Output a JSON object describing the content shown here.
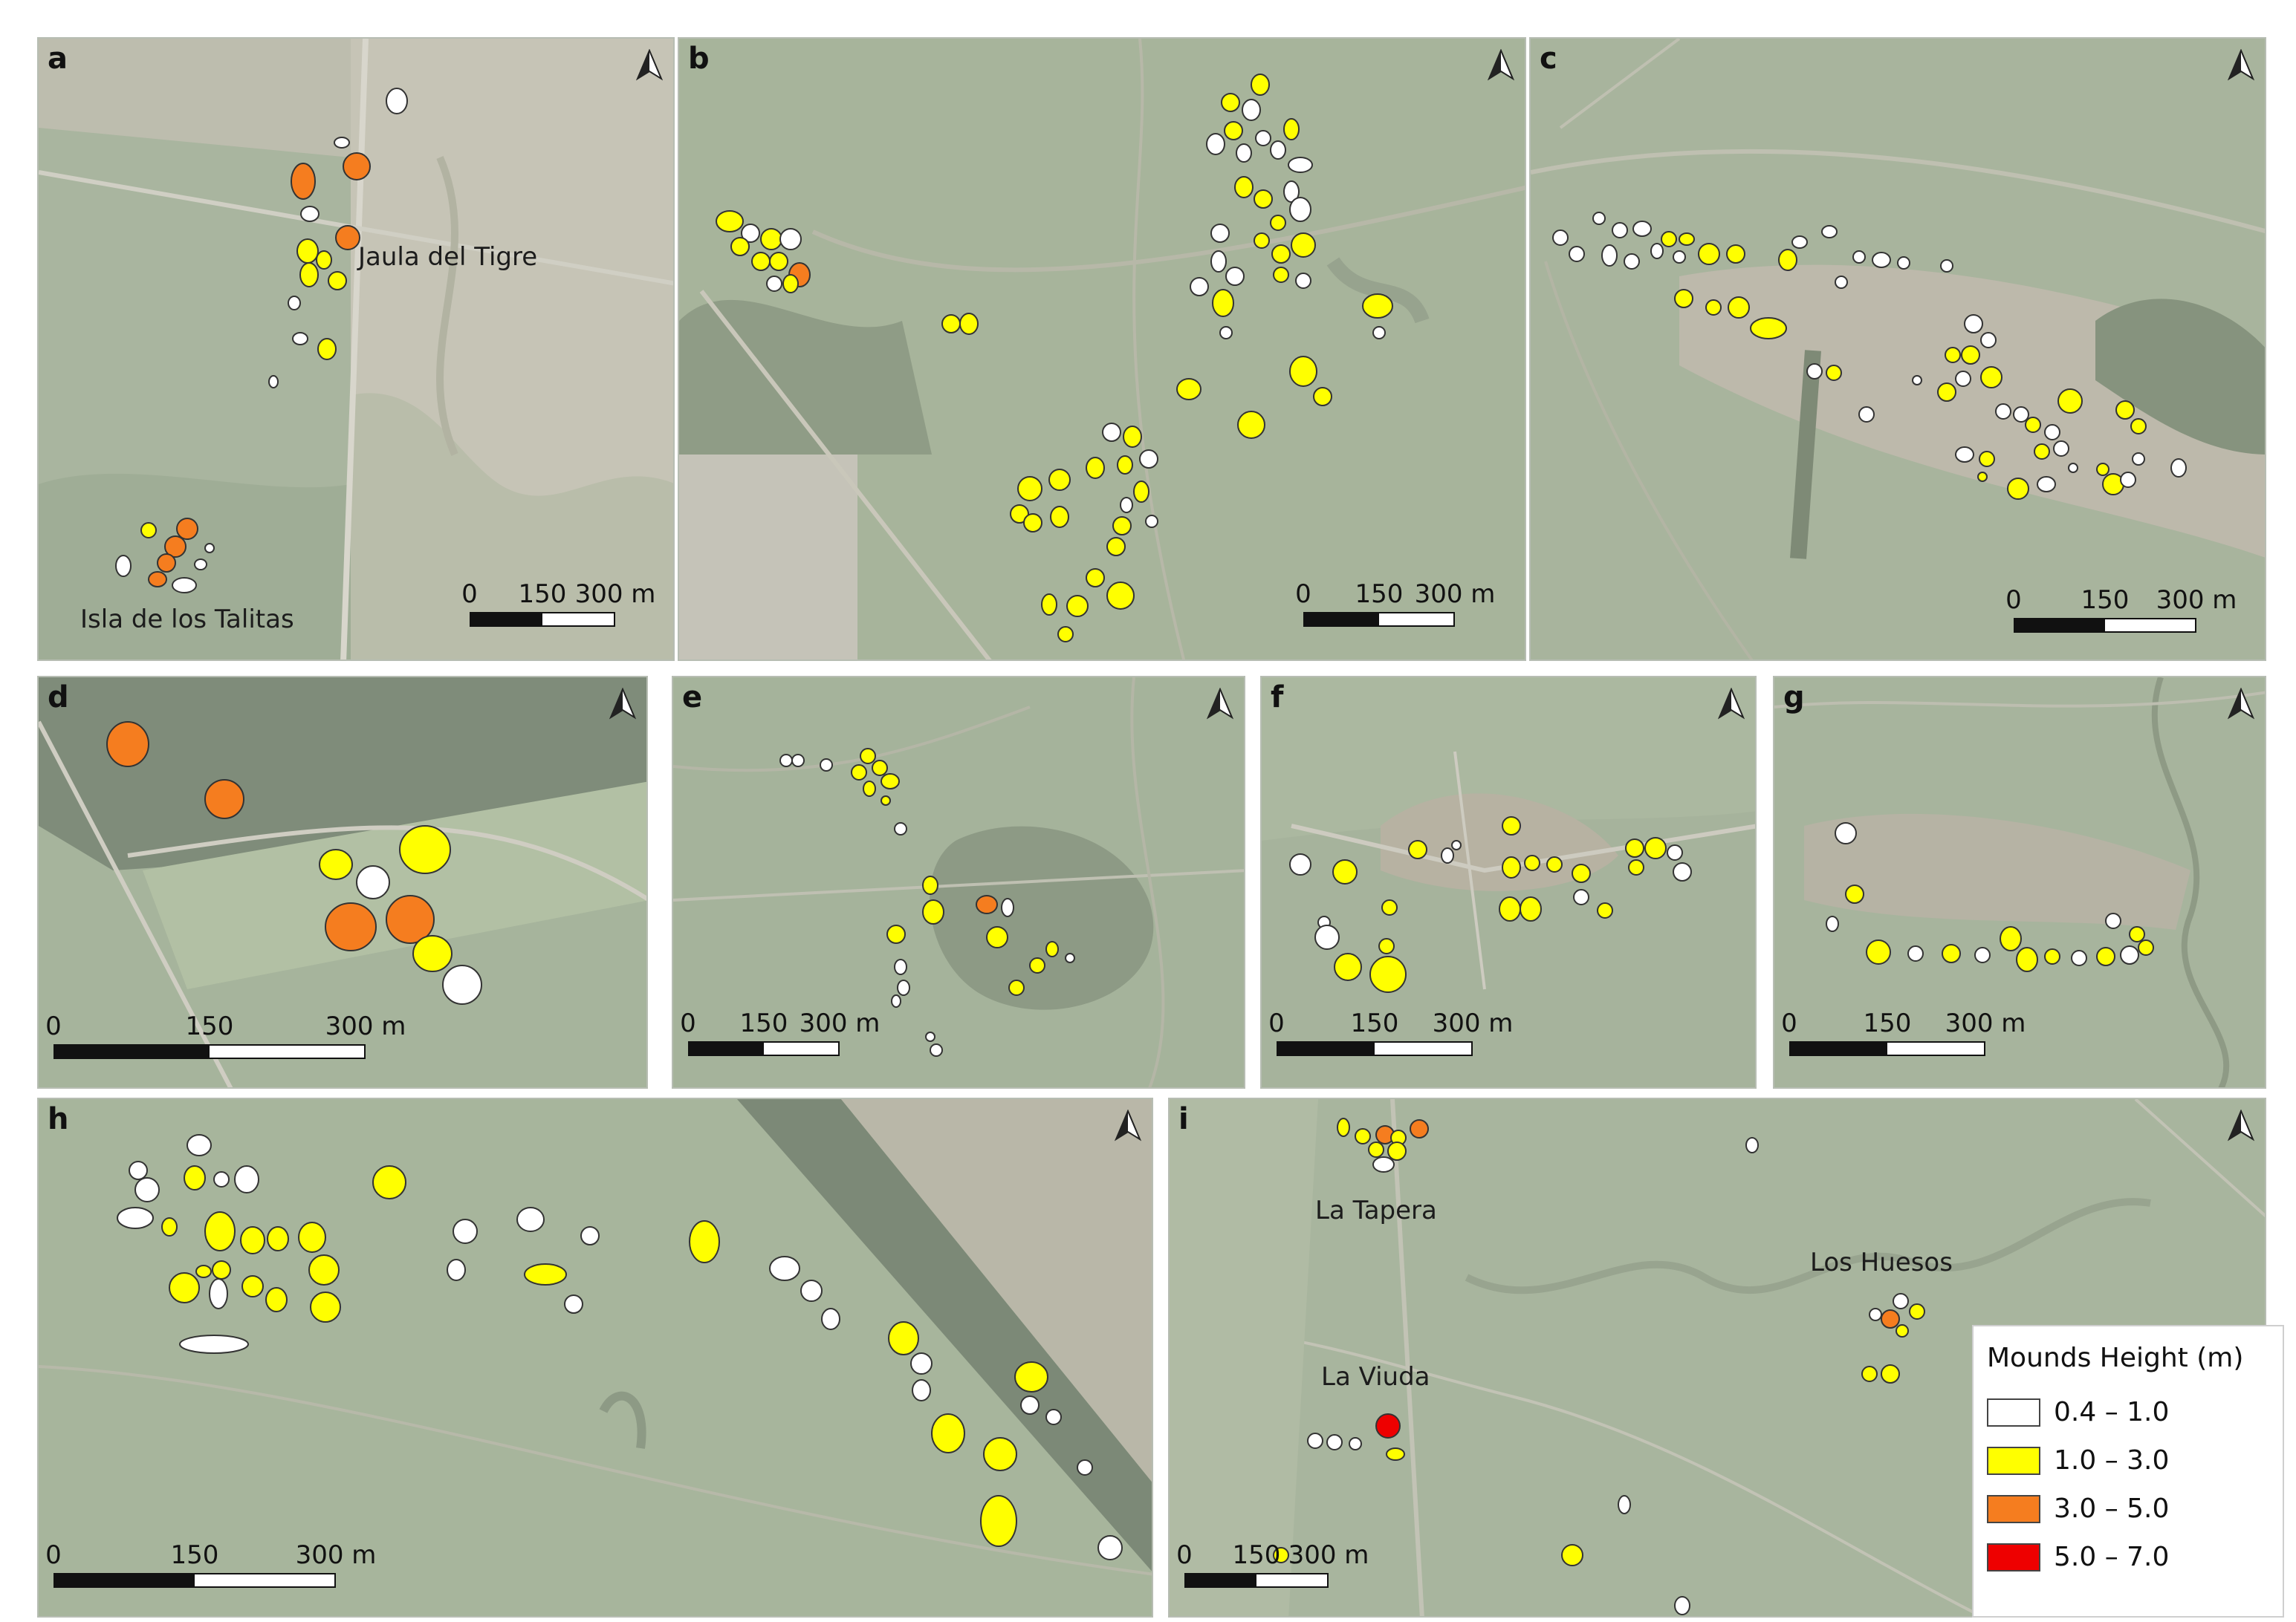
{
  "legend": {
    "title": "Mounds Height (m)",
    "classes": [
      {
        "label": "0.4 – 1.0",
        "color": "#ffffff"
      },
      {
        "label": "1.0 – 3.0",
        "color": "#ffff00"
      },
      {
        "label": "3.0 – 5.0",
        "color": "#f57d1f"
      },
      {
        "label": "5.0 – 7.0",
        "color": "#ee0000"
      }
    ]
  },
  "colors": {
    "imagery_green": "#a7b49b",
    "imagery_light": "#c4c2b5",
    "vegetation_dark": "#7f8c7a"
  },
  "panels": [
    {
      "label": "a",
      "places": [
        "Jaula del Tigre",
        "Isla de los Talitas"
      ],
      "scale": [
        "0",
        "150",
        "300 m"
      ]
    },
    {
      "label": "b",
      "places": [],
      "scale": [
        "0",
        "150",
        "300 m"
      ]
    },
    {
      "label": "c",
      "places": [],
      "scale": [
        "0",
        "150",
        "300 m"
      ]
    },
    {
      "label": "d",
      "places": [],
      "scale": [
        "0",
        "150",
        "300 m"
      ]
    },
    {
      "label": "e",
      "places": [],
      "scale": [
        "0",
        "150",
        "300 m"
      ]
    },
    {
      "label": "f",
      "places": [],
      "scale": [
        "0",
        "150",
        "300 m"
      ]
    },
    {
      "label": "g",
      "places": [],
      "scale": [
        "0",
        "150",
        "300 m"
      ]
    },
    {
      "label": "h",
      "places": [],
      "scale": [
        "0",
        "150",
        "300 m"
      ]
    },
    {
      "label": "i",
      "places": [
        "La Tapera",
        "Los Huesos",
        "La Viuda"
      ],
      "scale": [
        "0",
        "150",
        "300 m"
      ]
    }
  ],
  "north_arrow": "north-arrow-icon"
}
